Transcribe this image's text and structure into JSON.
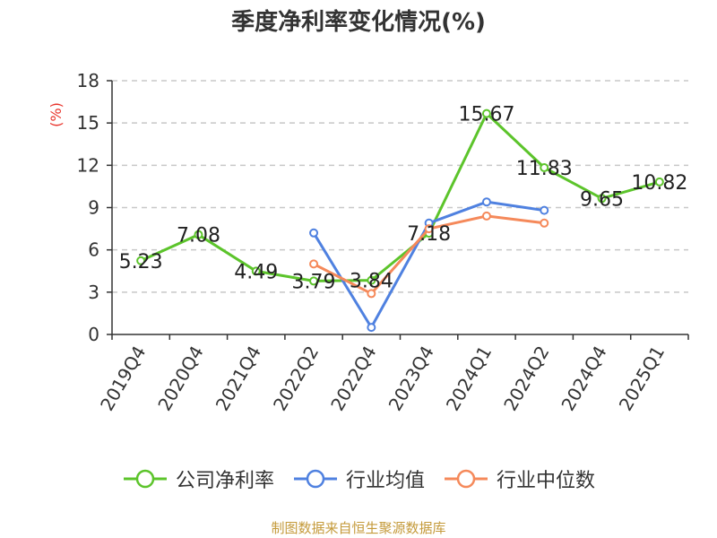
{
  "chart_data": {
    "type": "line",
    "title": "季度净利率变化情况(%)",
    "ylabel": "(%)",
    "xlabel": "",
    "ylim": [
      0,
      18
    ],
    "yticks": [
      0,
      3,
      6,
      9,
      12,
      15,
      18
    ],
    "grid": true,
    "legend_position": "bottom",
    "categories": [
      "2019Q4",
      "2020Q4",
      "2021Q4",
      "2022Q2",
      "2022Q4",
      "2023Q4",
      "2024Q1",
      "2024Q2",
      "2024Q4",
      "2025Q1"
    ],
    "series": [
      {
        "name": "公司净利率",
        "color": "#5cc42b",
        "values": [
          5.23,
          7.08,
          4.49,
          3.79,
          3.84,
          7.18,
          15.67,
          11.83,
          9.65,
          10.82
        ],
        "show_labels": true
      },
      {
        "name": "行业均值",
        "color": "#4f81e0",
        "values": [
          null,
          null,
          null,
          7.2,
          0.5,
          7.9,
          9.4,
          8.8,
          null,
          null
        ],
        "show_labels": false
      },
      {
        "name": "行业中位数",
        "color": "#f5895a",
        "values": [
          null,
          null,
          null,
          5.0,
          2.9,
          7.5,
          8.4,
          7.9,
          null,
          null
        ],
        "show_labels": false
      }
    ]
  },
  "source_note": "制图数据来自恒生聚源数据库"
}
